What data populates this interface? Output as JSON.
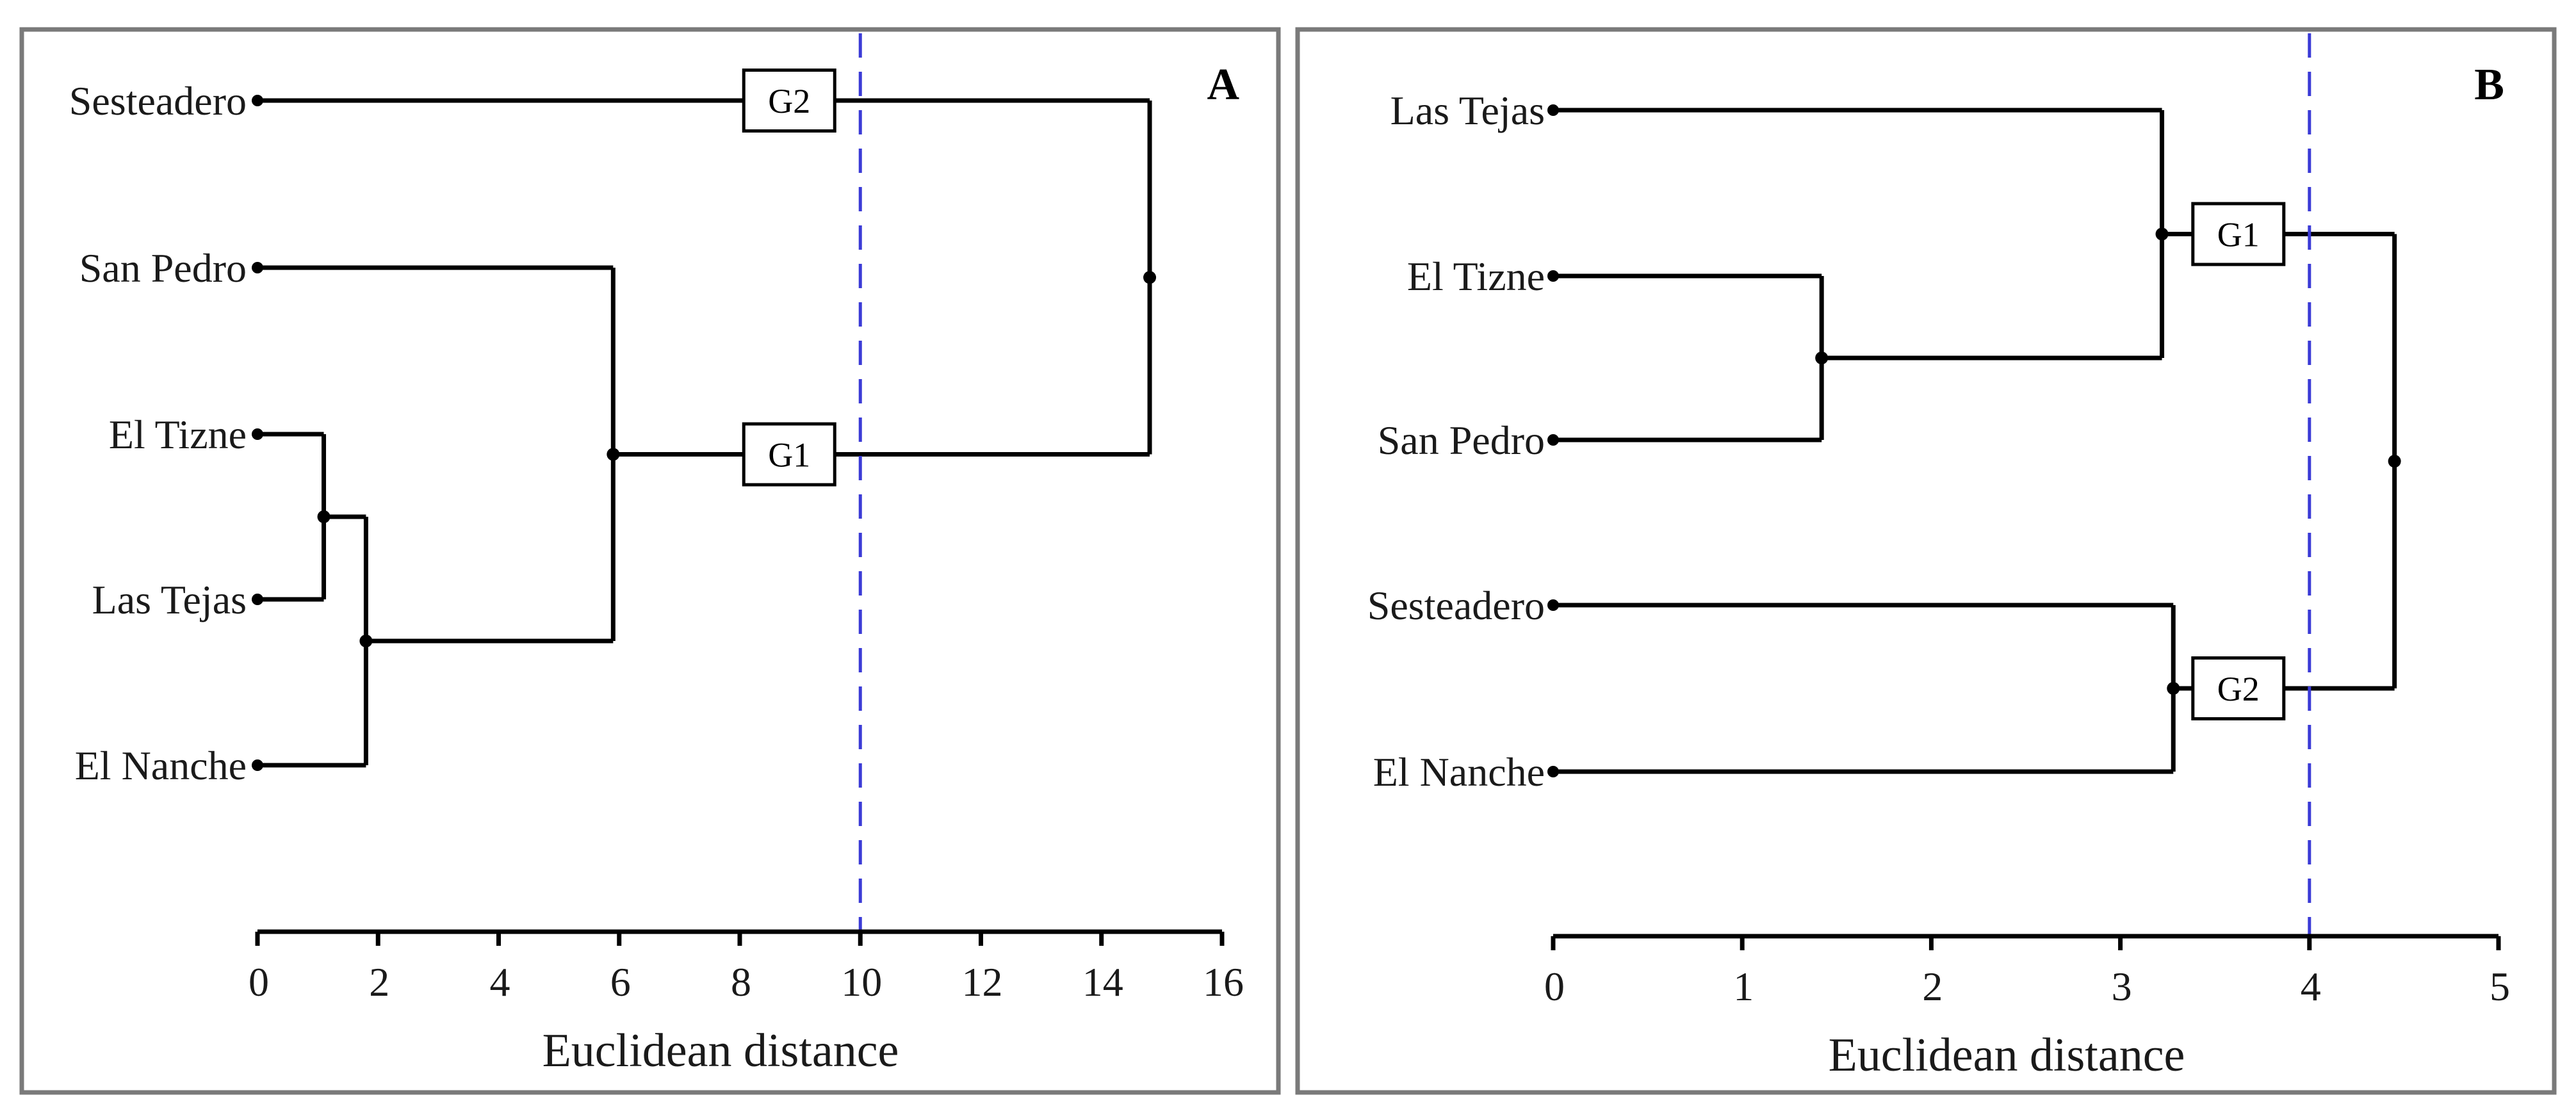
{
  "colors": {
    "frame": "#7a7a7a",
    "line": "#000000",
    "cutoff": "#3b3bd6",
    "background": "#ffffff"
  },
  "chart_data": [
    {
      "type": "dendrogram",
      "panel": "A",
      "xlabel": "Euclidean distance",
      "xlim": [
        0,
        16
      ],
      "xticks": [
        0,
        2,
        4,
        6,
        8,
        10,
        12,
        14,
        16
      ],
      "cutoff": 10,
      "leaves": [
        "Sesteadero",
        "San Pedro",
        "El Tizne",
        "Las Tejas",
        "El Nanche"
      ],
      "merges": [
        {
          "left": "El Tizne",
          "right": "Las Tejas",
          "height": 1.1
        },
        {
          "left": "El Tizne + Las Tejas",
          "right": "El Nanche",
          "height": 1.8
        },
        {
          "left": "San Pedro",
          "right": "El Tizne + Las Tejas + El Nanche",
          "height": 5.9
        },
        {
          "left": "Sesteadero",
          "right": "San Pedro + El Tizne + Las Tejas + El Nanche",
          "height": 14.8
        }
      ],
      "groups": [
        {
          "label": "G2",
          "members": [
            "Sesteadero"
          ]
        },
        {
          "label": "G1",
          "members": [
            "San Pedro",
            "El Tizne",
            "Las Tejas",
            "El Nanche"
          ]
        }
      ]
    },
    {
      "type": "dendrogram",
      "panel": "B",
      "xlabel": "Euclidean distance",
      "xlim": [
        0,
        5
      ],
      "xticks": [
        0,
        1,
        2,
        3,
        4,
        5
      ],
      "cutoff": 4,
      "leaves": [
        "Las Tejas",
        "El Tizne",
        "San Pedro",
        "Sesteadero",
        "El Nanche"
      ],
      "merges": [
        {
          "left": "El Tizne",
          "right": "San Pedro",
          "height": 1.42
        },
        {
          "left": "Las Tejas",
          "right": "El Tizne + San Pedro",
          "height": 3.22
        },
        {
          "left": "Sesteadero",
          "right": "El Nanche",
          "height": 3.28
        },
        {
          "left": "Las Tejas + El Tizne + San Pedro",
          "right": "Sesteadero + El Nanche",
          "height": 4.45
        }
      ],
      "groups": [
        {
          "label": "G1",
          "members": [
            "Las Tejas",
            "El Tizne",
            "San Pedro"
          ]
        },
        {
          "label": "G2",
          "members": [
            "Sesteadero",
            "El Nanche"
          ]
        }
      ]
    }
  ]
}
